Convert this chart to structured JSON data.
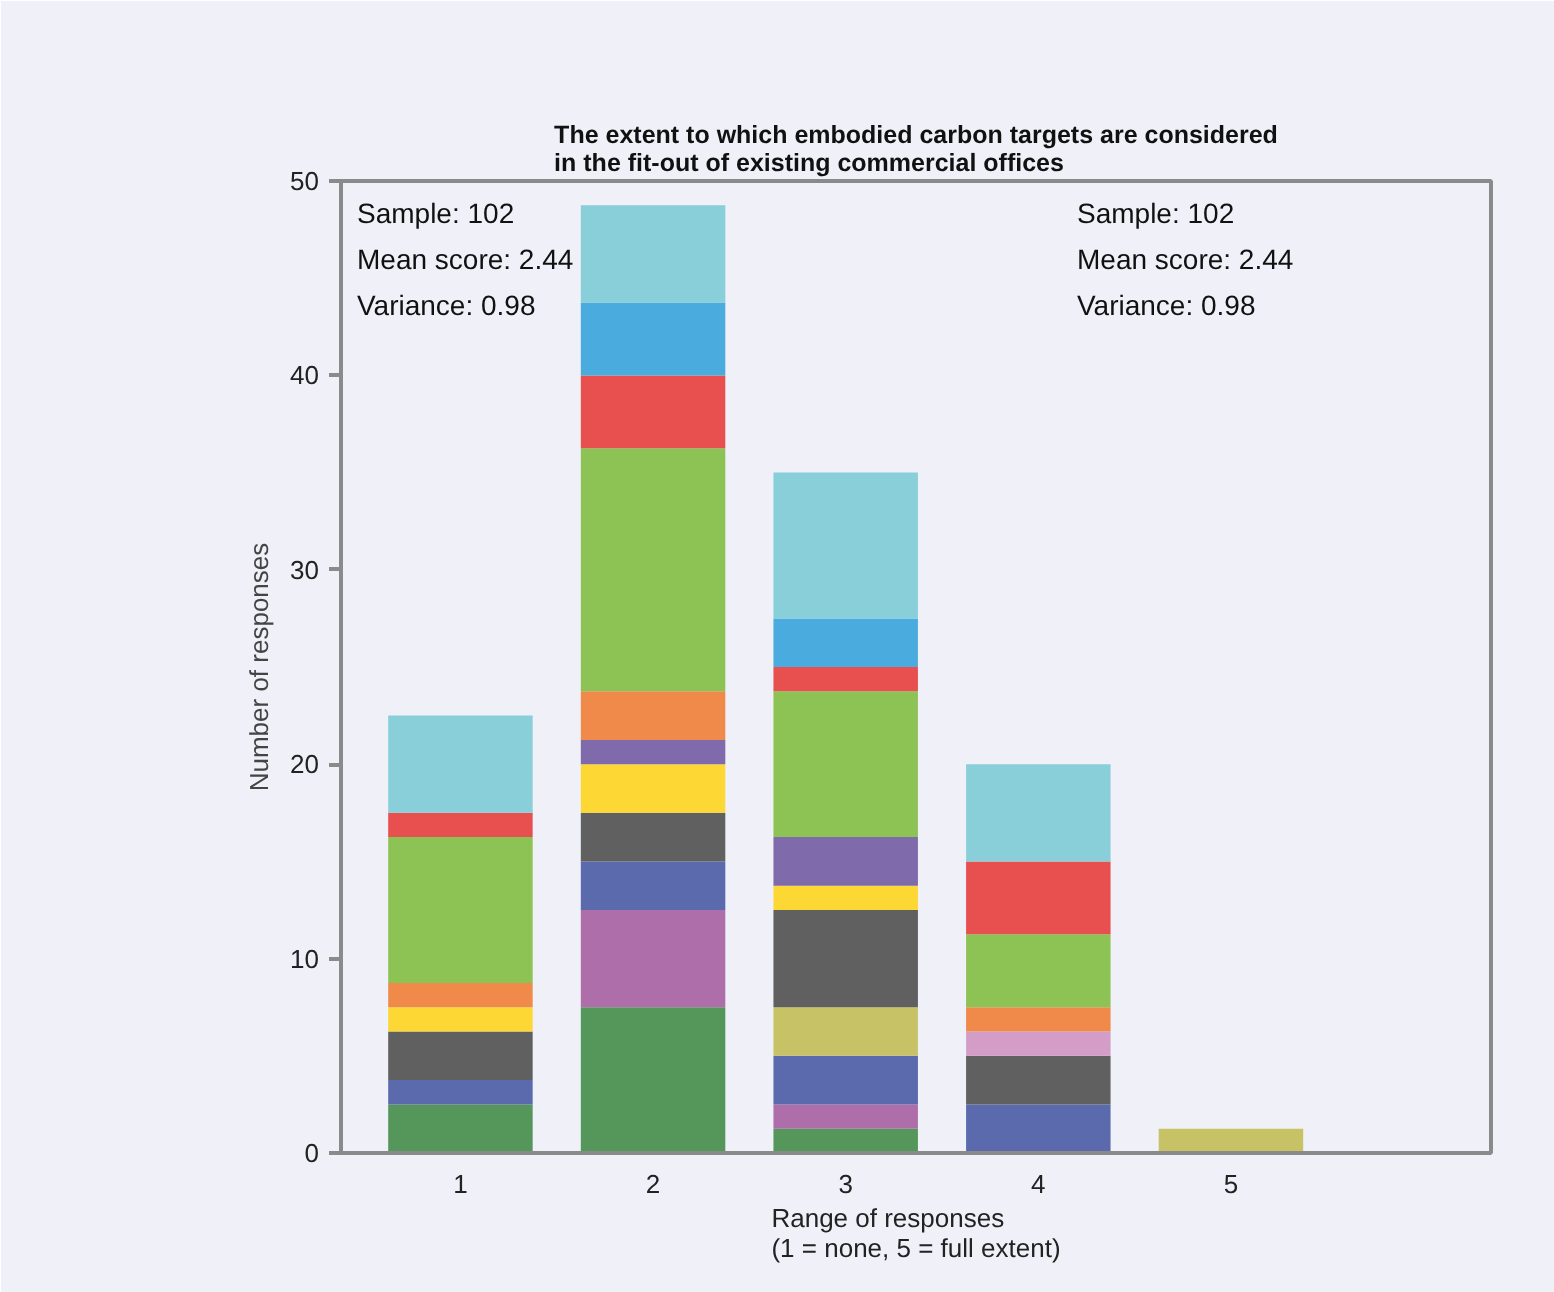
{
  "chart_data": {
    "type": "bar",
    "stacked": true,
    "title": "The extent to which embodied carbon targets are considered\nin the fit-out of existing commercial offices",
    "xlabel": "Range of responses\n(1 = none, 5 = full extent)",
    "ylabel": "Number of responses",
    "categories": [
      "1",
      "2",
      "3",
      "4",
      "5"
    ],
    "series": [
      {
        "color": "#55965a",
        "values": [
          2.5,
          7.5,
          1.25,
          0,
          0
        ]
      },
      {
        "color": "#ad6eaa",
        "values": [
          0,
          5,
          1.25,
          0,
          0
        ]
      },
      {
        "color": "#5a6aad",
        "values": [
          1.25,
          2.5,
          2.5,
          2.5,
          0
        ]
      },
      {
        "color": "#c8c266",
        "values": [
          0,
          0,
          2.5,
          0,
          1.25
        ]
      },
      {
        "color": "#606060",
        "values": [
          2.5,
          2.5,
          5,
          2.5,
          0
        ]
      },
      {
        "color": "#fdd835",
        "values": [
          1.25,
          2.5,
          1.25,
          0,
          0
        ]
      },
      {
        "color": "#7f6aab",
        "values": [
          0,
          1.25,
          2.5,
          0,
          0
        ]
      },
      {
        "color": "#d49dc8",
        "values": [
          0,
          0,
          0,
          1.25,
          0
        ]
      },
      {
        "color": "#ef8a4a",
        "values": [
          1.25,
          2.5,
          0,
          1.25,
          0
        ]
      },
      {
        "color": "#8dc254",
        "values": [
          7.5,
          12.5,
          7.5,
          3.75,
          0
        ]
      },
      {
        "color": "#e84f4f",
        "values": [
          1.25,
          3.75,
          1.25,
          3.75,
          0
        ]
      },
      {
        "color": "#4aacde",
        "values": [
          0,
          3.75,
          2.5,
          0,
          0
        ]
      },
      {
        "color": "#89cfd9",
        "values": [
          5,
          5,
          7.5,
          5,
          0
        ]
      }
    ],
    "ylim": [
      0,
      50
    ],
    "yticks": [
      0,
      10,
      20,
      30,
      40,
      50
    ],
    "grid": false,
    "annotations": [
      "Sample: 102\nMean score: 2.44\nVariance: 0.98",
      "Sample: 102\nMean score: 2.44\nVariance: 0.98"
    ]
  }
}
